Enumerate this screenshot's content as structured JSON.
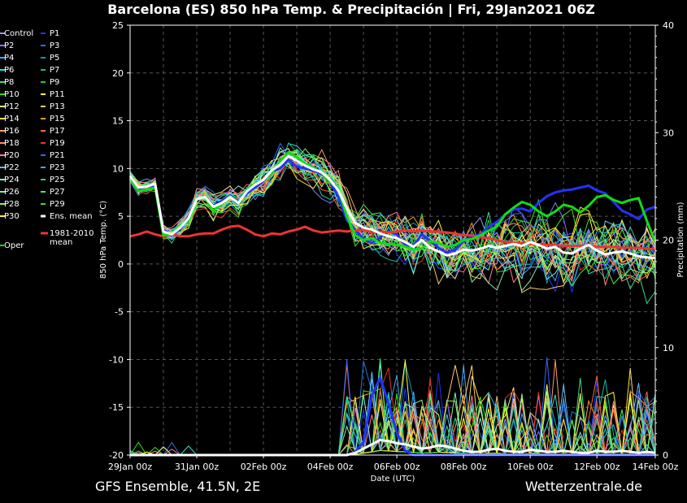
{
  "chart_data": {
    "type": "line",
    "title": "Barcelona  (ES)  850 hPa Temp. & Precipitación | Fri, 29Jan2021 06Z",
    "ylabel": "850 hPa Temp. (°C)",
    "y2label": "Precipitation (mm)",
    "xlabel": "Date (UTC)",
    "footer_left": "GFS Ensemble, 41.5N, 2E",
    "footer_right": "Wetterzentrale.de",
    "ylim": [
      -20,
      25
    ],
    "y2lim": [
      0,
      40
    ],
    "xlim": [
      0,
      15.75
    ],
    "yticks": [
      25,
      20,
      15,
      10,
      5,
      0,
      -5,
      -10,
      -15,
      -20
    ],
    "y2ticks": [
      40,
      30,
      20,
      10,
      0
    ],
    "x_ticks": [
      {
        "x": 0,
        "label": "29Jan 00z"
      },
      {
        "x": 2,
        "label": "31Jan 00z"
      },
      {
        "x": 4,
        "label": "02Feb 00z"
      },
      {
        "x": 6,
        "label": "04Feb 00z"
      },
      {
        "x": 8,
        "label": "06Feb 00z"
      },
      {
        "x": 10,
        "label": "08Feb 00z"
      },
      {
        "x": 12,
        "label": "10Feb 00z"
      },
      {
        "x": 14,
        "label": "12Feb 00z"
      },
      {
        "x": 16,
        "label": "14Feb 00z"
      }
    ],
    "grid": true,
    "legend": "left",
    "legend_entries": [
      {
        "label": "Control",
        "color": "#9999ff"
      },
      {
        "label": "P1",
        "color": "#2233ff"
      },
      {
        "label": "P2",
        "color": "#7777ff"
      },
      {
        "label": "P3",
        "color": "#2277dd"
      },
      {
        "label": "P4",
        "color": "#44aaff"
      },
      {
        "label": "P5",
        "color": "#1199bb"
      },
      {
        "label": "P6",
        "color": "#33ddcc"
      },
      {
        "label": "P7",
        "color": "#11bb99"
      },
      {
        "label": "P8",
        "color": "#33dd88"
      },
      {
        "label": "P9",
        "color": "#22cc44"
      },
      {
        "label": "P10",
        "color": "#33dd11"
      },
      {
        "label": "P11",
        "color": "#ffff44"
      },
      {
        "label": "P12",
        "color": "#ffee88"
      },
      {
        "label": "P13",
        "color": "#ffcc66"
      },
      {
        "label": "P14",
        "color": "#ffdd55"
      },
      {
        "label": "P15",
        "color": "#ff9922"
      },
      {
        "label": "P16",
        "color": "#ff9966"
      },
      {
        "label": "P17",
        "color": "#ff6633"
      },
      {
        "label": "P18",
        "color": "#ff8877"
      },
      {
        "label": "P19",
        "color": "#ee3322"
      },
      {
        "label": "P20",
        "color": "#ff7799"
      },
      {
        "label": "P21",
        "color": "#3366ff"
      },
      {
        "label": "P22",
        "color": "#66bbff"
      },
      {
        "label": "P23",
        "color": "#33aaff"
      },
      {
        "label": "P24",
        "color": "#77eedd"
      },
      {
        "label": "P25",
        "color": "#22ccaa"
      },
      {
        "label": "P26",
        "color": "#88ee99"
      },
      {
        "label": "P27",
        "color": "#44ee66"
      },
      {
        "label": "P28",
        "color": "#99ee55"
      },
      {
        "label": "P29",
        "color": "#44dd22"
      },
      {
        "label": "P30",
        "color": "#ffee33"
      },
      {
        "label": "Ens. mean",
        "color": "#ffffff"
      },
      {
        "label": "1981-2010 mean",
        "color": "#ee3333"
      },
      {
        "label": "Oper",
        "color": "#11dd11"
      }
    ],
    "x_step_days": 0.25,
    "series": [
      {
        "name": "Ens. mean",
        "color": "#ffffff",
        "width": 3,
        "values": [
          9.2,
          8.0,
          8.1,
          8.4,
          3.4,
          3.1,
          3.8,
          4.8,
          6.8,
          7.0,
          6.0,
          6.4,
          7.0,
          6.4,
          7.6,
          8.3,
          8.8,
          9.8,
          10.4,
          11.3,
          10.8,
          10.3,
          9.9,
          9.6,
          8.8,
          7.7,
          5.8,
          4.3,
          3.8,
          3.6,
          3.2,
          2.9,
          2.7,
          2.3,
          1.8,
          2.5,
          1.7,
          1.3,
          0.9,
          1.1,
          1.5,
          1.4,
          1.6,
          1.9,
          1.7,
          1.9,
          2.1,
          1.9,
          2.3,
          2.0,
          1.6,
          1.8,
          1.2,
          1.1,
          1.6,
          2.0,
          1.4,
          1.0,
          1.2,
          1.3,
          1.1,
          0.8,
          0.7,
          0.6
        ]
      },
      {
        "name": "1981-2010 mean",
        "color": "#ee3333",
        "width": 3,
        "values": [
          2.9,
          3.1,
          3.4,
          3.1,
          2.9,
          3.1,
          2.9,
          2.9,
          3.1,
          3.2,
          3.2,
          3.6,
          3.9,
          4.0,
          3.6,
          3.1,
          2.9,
          3.2,
          3.1,
          3.4,
          3.6,
          3.9,
          3.5,
          3.3,
          3.4,
          3.5,
          3.4,
          3.5,
          3.6,
          3.3,
          3.4,
          3.3,
          3.4,
          3.5,
          3.4,
          3.5,
          3.4,
          3.4,
          3.3,
          3.2,
          3.0,
          3.0,
          2.8,
          2.7,
          2.5,
          2.3,
          2.2,
          2.2,
          2.1,
          2.1,
          2.0,
          2.0,
          1.9,
          1.9,
          1.9,
          1.9,
          1.8,
          1.8,
          1.8,
          1.7,
          1.7,
          1.7,
          1.6,
          1.6
        ]
      },
      {
        "name": "Oper",
        "color": "#11dd11",
        "width": 3,
        "values": [
          8.9,
          7.6,
          7.8,
          8.0,
          3.0,
          3.1,
          4.0,
          4.6,
          6.8,
          6.9,
          5.6,
          6.3,
          7.1,
          6.4,
          7.8,
          8.4,
          8.8,
          9.6,
          10.7,
          11.7,
          11.2,
          10.5,
          10.1,
          9.5,
          8.6,
          7.8,
          5.0,
          3.0,
          2.5,
          2.7,
          2.2,
          2.1,
          2.0,
          1.8,
          1.5,
          1.6,
          2.4,
          2.2,
          1.8,
          2.0,
          2.5,
          2.6,
          3.0,
          3.5,
          3.9,
          5.2,
          5.9,
          6.5,
          6.2,
          5.5,
          5.0,
          5.5,
          6.2,
          6.0,
          5.4,
          6.1,
          7.0,
          7.2,
          6.7,
          6.4,
          6.7,
          6.9,
          4.5,
          2.3
        ]
      },
      {
        "name": "P1",
        "color": "#2233ff",
        "width": 3,
        "values": [
          9.0,
          7.9,
          8.1,
          8.2,
          3.6,
          3.0,
          3.7,
          5.0,
          6.8,
          7.0,
          6.1,
          6.6,
          7.2,
          6.5,
          7.4,
          8.0,
          8.7,
          9.7,
          10.0,
          10.9,
          10.2,
          10.0,
          9.8,
          9.4,
          8.6,
          7.0,
          4.6,
          3.6,
          2.6,
          2.2,
          2.8,
          3.4,
          3.1,
          2.0,
          1.9,
          3.1,
          2.4,
          1.7,
          1.2,
          1.5,
          2.4,
          2.9,
          3.1,
          3.9,
          4.4,
          5.2,
          5.7,
          5.8,
          5.5,
          6.4,
          7.1,
          7.5,
          7.7,
          7.8,
          8.0,
          8.2,
          7.7,
          7.4,
          6.5,
          5.6,
          5.2,
          4.7,
          5.7,
          6.0
        ]
      }
    ],
    "spaghetti_count": 30,
    "precip_series": [
      {
        "name": "P1",
        "color": "#2233ff",
        "width": 3,
        "values_mm": [
          0,
          0,
          0,
          0,
          0,
          0,
          0,
          0,
          0,
          0,
          0,
          0,
          0,
          0,
          0,
          0,
          0,
          0,
          0,
          0,
          0,
          0,
          0,
          0,
          0,
          0,
          0,
          0.3,
          1.2,
          5.5,
          7.2,
          4.8,
          2.1,
          0.4,
          0,
          0,
          0,
          0,
          0,
          0,
          0,
          0,
          0,
          0,
          0,
          0,
          0,
          0,
          0,
          0,
          0,
          0,
          0,
          0,
          0,
          0,
          0,
          0,
          0,
          0,
          0,
          0,
          0,
          0
        ]
      },
      {
        "name": "Ens. mean",
        "color": "#ffffff",
        "width": 3,
        "values_mm": [
          0,
          0,
          0,
          0,
          0,
          0,
          0,
          0,
          0,
          0,
          0,
          0,
          0,
          0,
          0,
          0,
          0,
          0,
          0,
          0,
          0,
          0,
          0,
          0,
          0,
          0,
          0,
          0.2,
          0.6,
          1.0,
          1.4,
          1.3,
          1.1,
          1.0,
          0.8,
          0.6,
          0.7,
          0.9,
          0.8,
          0.6,
          0.4,
          0.3,
          0.3,
          0.5,
          0.6,
          0.4,
          0.3,
          0.3,
          0.5,
          0.4,
          0.3,
          0.3,
          0.4,
          0.3,
          0.2,
          0.2,
          0.4,
          0.3,
          0.3,
          0.4,
          0.3,
          0.2,
          0.3,
          0.2
        ]
      }
    ]
  }
}
